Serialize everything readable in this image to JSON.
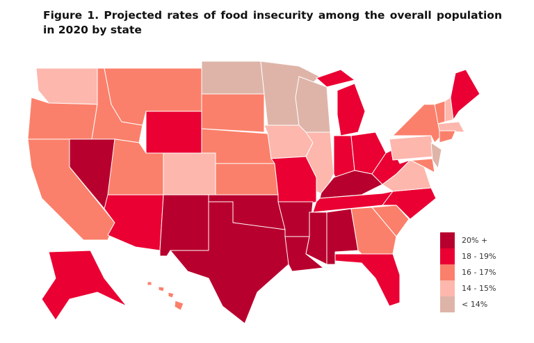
{
  "title": "Figure 1. Projected rates of food insecurity among the overall population in 2020 by state",
  "legend": [
    {
      "label": "20% +",
      "color": "#b8002e"
    },
    {
      "label": "18 - 19%",
      "color": "#ea0032"
    },
    {
      "label": "16 - 17%",
      "color": "#fb806b"
    },
    {
      "label": "14 - 15%",
      "color": "#fdb7ad"
    },
    {
      "label": "< 14%",
      "color": "#deb4a9"
    }
  ],
  "states": {
    "WA": "14 - 15%",
    "OR": "16 - 17%",
    "CA": "16 - 17%",
    "NV": "20% +",
    "ID": "16 - 17%",
    "MT": "16 - 17%",
    "WY": "18 - 19%",
    "UT": "16 - 17%",
    "AZ": "18 - 19%",
    "CO": "14 - 15%",
    "NM": "20% +",
    "ND": "< 14%",
    "SD": "16 - 17%",
    "NE": "16 - 17%",
    "KS": "16 - 17%",
    "OK": "20% +",
    "TX": "20% +",
    "MN": "< 14%",
    "IA": "14 - 15%",
    "MO": "18 - 19%",
    "AR": "20% +",
    "LA": "20% +",
    "WI": "< 14%",
    "IL": "14 - 15%",
    "MI": "18 - 19%",
    "IN": "18 - 19%",
    "OH": "18 - 19%",
    "KY": "20% +",
    "TN": "18 - 19%",
    "MS": "20% +",
    "AL": "20% +",
    "GA": "16 - 17%",
    "FL": "18 - 19%",
    "SC": "16 - 17%",
    "NC": "18 - 19%",
    "VA": "14 - 15%",
    "WV": "18 - 19%",
    "PA": "14 - 15%",
    "NY": "16 - 17%",
    "MD": "16 - 17%",
    "NJ": "< 14%",
    "VT": "16 - 17%",
    "NH": "14 - 15%",
    "ME": "18 - 19%",
    "MA": "14 - 15%",
    "CT": "16 - 17%",
    "AK": "18 - 19%",
    "HI": "16 - 17%"
  }
}
